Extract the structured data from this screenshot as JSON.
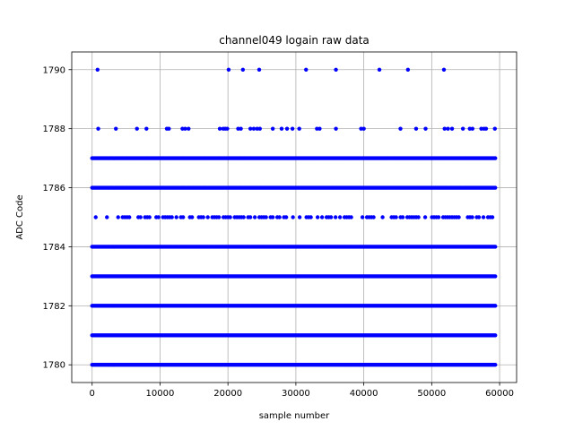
{
  "chart_data": {
    "type": "scatter",
    "title": "channel049 logain raw data",
    "xlabel": "sample number",
    "ylabel": "ADC Code",
    "xlim": [
      -3000,
      62500
    ],
    "ylim": [
      1779.4,
      1790.6
    ],
    "x_ticks": [
      0,
      10000,
      20000,
      30000,
      40000,
      50000,
      60000
    ],
    "x_tick_labels": [
      "0",
      "10000",
      "20000",
      "30000",
      "40000",
      "50000",
      "60000"
    ],
    "y_ticks": [
      1780,
      1782,
      1784,
      1786,
      1788,
      1790
    ],
    "y_tick_labels": [
      "1780",
      "1782",
      "1784",
      "1786",
      "1788",
      "1790"
    ],
    "grid": true,
    "marker_color": "#0000ff",
    "x_range_samples": [
      0,
      59500
    ],
    "dense_levels": [
      1780,
      1781,
      1782,
      1783,
      1784,
      1786,
      1787
    ],
    "semi_dense_levels": [
      1785
    ],
    "sparse_points": [
      {
        "y": 1790,
        "x": [
          800,
          20100,
          22200,
          24600,
          31500,
          35900,
          42300,
          46500,
          51800
        ]
      },
      {
        "y": 1788,
        "x": [
          900,
          3500,
          6600,
          8000,
          11000,
          11300,
          13300,
          13700,
          14200,
          18800,
          19300,
          19600,
          19900,
          21500,
          21900,
          23300,
          23800,
          24300,
          24700,
          26600,
          27900,
          28700,
          29500,
          30500,
          33100,
          33500,
          35900,
          39600,
          40000,
          45400,
          47700,
          49100,
          51900,
          52400,
          53000,
          54600,
          55600,
          56000,
          57300,
          57700,
          58000,
          59300
        ]
      }
    ]
  }
}
